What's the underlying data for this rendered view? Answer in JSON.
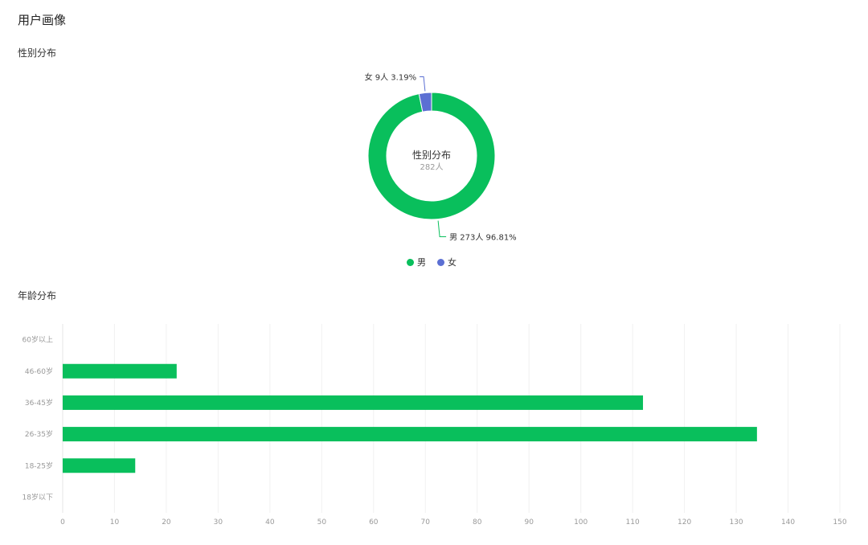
{
  "page": {
    "title": "用户画像"
  },
  "gender_section": {
    "title": "性别分布"
  },
  "age_section": {
    "title": "年龄分布"
  },
  "colors": {
    "male": "#09bf5c",
    "female": "#5b6fd3",
    "grid": "#f1f1f1",
    "axis_text": "#999999"
  },
  "chart_data": [
    {
      "type": "pie",
      "variant": "donut",
      "center_title": "性别分布",
      "center_subtitle": "282人",
      "slices": [
        {
          "name": "男",
          "value": 273,
          "percent": 96.81,
          "label": "男 273人 96.81%",
          "color": "#09bf5c"
        },
        {
          "name": "女",
          "value": 9,
          "percent": 3.19,
          "label": "女 9人 3.19%",
          "color": "#5b6fd3"
        }
      ],
      "legend": [
        "男",
        "女"
      ],
      "legend_position": "bottom-center"
    },
    {
      "type": "bar",
      "orientation": "horizontal",
      "categories": [
        "18岁以下",
        "18-25岁",
        "26-35岁",
        "36-45岁",
        "46-60岁",
        "60岁以上"
      ],
      "values": [
        0,
        14,
        134,
        112,
        22,
        0
      ],
      "xlim": [
        0,
        150
      ],
      "xticks": [
        "0",
        "10",
        "20",
        "30",
        "40",
        "50",
        "60",
        "70",
        "80",
        "90",
        "100",
        "110",
        "120",
        "130",
        "140",
        "150"
      ],
      "grid": true,
      "color": "#09bf5c"
    }
  ]
}
